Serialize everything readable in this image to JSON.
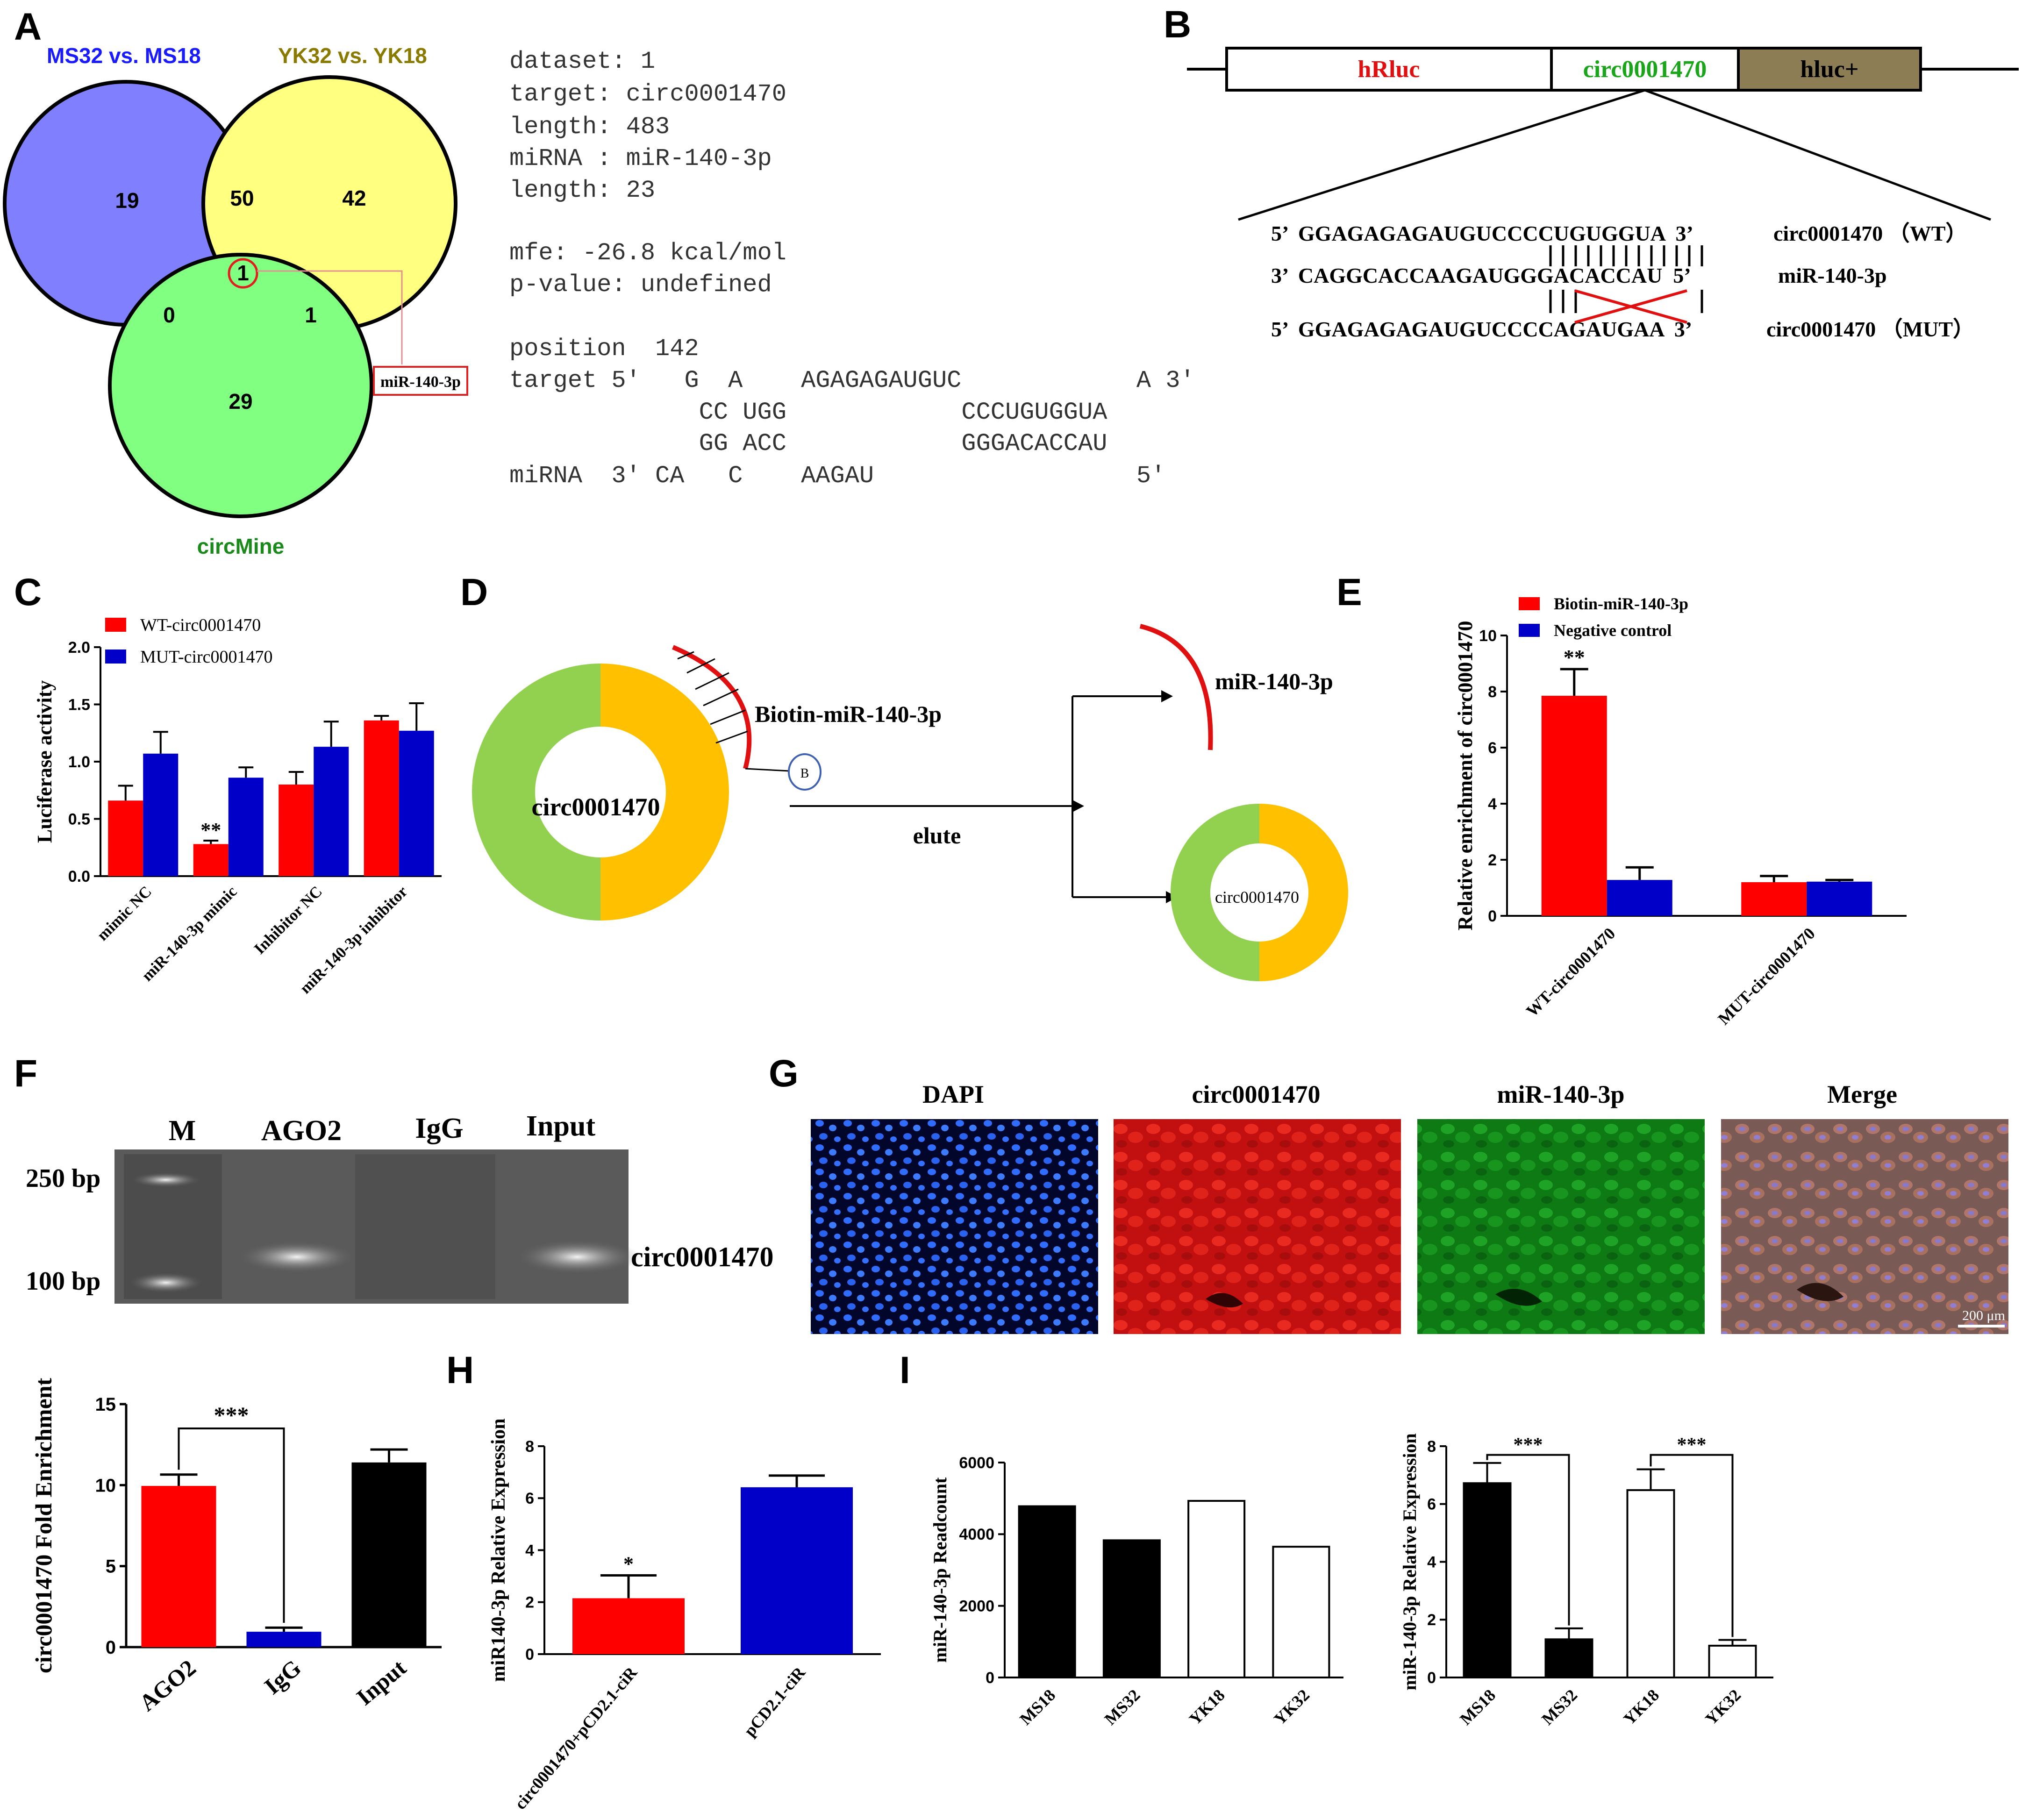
{
  "panels": {
    "A": {
      "label": "A",
      "set1": "MS32 vs. MS18",
      "set2": "YK32 vs. YK18",
      "set3": "circMine",
      "counts": {
        "only1": "19",
        "only2": "42",
        "only3": "29",
        "c12": "50",
        "c13": "0",
        "c23": "1",
        "c123": "1"
      },
      "callout": "miR-140-3p",
      "colors": {
        "set1": "#8080ff",
        "set2": "#ffff80",
        "set3": "#80ff80",
        "set1_text": "#1a1aff",
        "set2_text": "#8a7a00",
        "set3_text": "#1a8a1a"
      },
      "rna_lines": [
        "dataset: 1",
        "target: circ0001470",
        "length: 483",
        "miRNA : miR-140-3p",
        "length: 23",
        "",
        "mfe: -26.8 kcal/mol",
        "p-value: undefined",
        "",
        "position  142",
        "target 5'   G  A    AGAGAGAUGUC            A 3'",
        "             CC UGG            CCCUGUGGUA",
        "             GG ACC            GGGACACCAU",
        "miRNA  3' CA   C    AAGAU                  5'"
      ]
    },
    "B": {
      "label": "B",
      "box1": "hRluc",
      "box2": "circ0001470",
      "box3": "hluc+",
      "wt_seq": "5’  GGAGAGAGAUGUCCCCUGUGGUA  3’",
      "wt_label": "circ0001470 （WT）",
      "mir_seq": "3’  CAGGCACCAAGAUGGGACACCAU  5’",
      "mir_label": "miR-140-3p",
      "mut_seq": "5’  GGAGAGAGAUGUCCCCAGAUGAA  3’",
      "mut_label": "circ0001470 （MUT）"
    },
    "C": {
      "label": "C",
      "ylabel": "Luciferase activity",
      "sig": "**",
      "legend": [
        "WT-circ0001470",
        "MUT-circ0001470"
      ]
    },
    "D": {
      "label": "D",
      "ring_label": "circ0001470",
      "probe_label": "Biotin-miR-140-3p",
      "bead": "B",
      "elute": "elute",
      "mir_label": "miR-140-3p",
      "small_ring_label": "circ0001470"
    },
    "E": {
      "label": "E",
      "ylabel": "Relative enrichment of circ0001470",
      "sig": "**",
      "legend": [
        "Biotin-miR-140-3p",
        "Negative control"
      ]
    },
    "F": {
      "label": "F",
      "gel_lanes": [
        "M",
        "AGO2",
        "IgG",
        "Input"
      ],
      "gel_markers": [
        "250 bp",
        "100 bp"
      ],
      "gel_target": "circ0001470",
      "ylabel": "circ0001470 Fold Enrichment",
      "sig": "***"
    },
    "G": {
      "label": "G",
      "titles": [
        "DAPI",
        "circ0001470",
        "miR-140-3p",
        "Merge"
      ],
      "scale_bar": "200 μm"
    },
    "H": {
      "label": "H",
      "ylabel": "miR140-3p Relative Expression",
      "sig": "*"
    },
    "I": {
      "label": "I",
      "ylabel_left": "miR-140-3p Readcount",
      "ylabel_right": "miR-140-3p Relative Expression",
      "sig": [
        "***",
        "***"
      ]
    }
  },
  "chart_data": [
    {
      "id": "C",
      "type": "bar",
      "categories": [
        "mimic NC",
        "miR-140-3p mimic",
        "Inhibitor NC",
        "miR-140-3p inhibitor"
      ],
      "series": [
        {
          "name": "WT-circ0001470",
          "color": "#ff0000",
          "values": [
            0.66,
            0.28,
            0.8,
            1.36
          ],
          "errors": [
            0.13,
            0.03,
            0.11,
            0.04
          ]
        },
        {
          "name": "MUT-circ0001470",
          "color": "#0000c8",
          "values": [
            1.07,
            0.86,
            1.13,
            1.27
          ],
          "errors": [
            0.19,
            0.09,
            0.22,
            0.24
          ]
        }
      ],
      "ylabel": "Luciferase activity",
      "ylim": [
        0,
        2.0
      ],
      "yticks": [
        "0.0",
        "0.5",
        "1.0",
        "1.5",
        "2.0"
      ],
      "annotations": [
        {
          "text": "**",
          "category": "miR-140-3p mimic",
          "series": 0
        }
      ]
    },
    {
      "id": "E",
      "type": "bar",
      "categories": [
        "WT-circ0001470",
        "MUT-circ0001470"
      ],
      "series": [
        {
          "name": "Biotin-miR-140-3p",
          "color": "#ff0000",
          "values": [
            7.85,
            1.2
          ],
          "errors": [
            0.95,
            0.22
          ]
        },
        {
          "name": "Negative control",
          "color": "#0000c8",
          "values": [
            1.28,
            1.22
          ],
          "errors": [
            0.45,
            0.06
          ]
        }
      ],
      "ylabel": "Relative enrichment of circ0001470",
      "ylim": [
        0,
        10
      ],
      "yticks": [
        "0",
        "2",
        "4",
        "6",
        "8",
        "10"
      ],
      "annotations": [
        {
          "text": "**",
          "category": "WT-circ0001470",
          "series": 0
        }
      ]
    },
    {
      "id": "F",
      "type": "bar",
      "categories": [
        "AGO2",
        "IgG",
        "Input"
      ],
      "values": [
        9.95,
        0.95,
        11.4
      ],
      "errors": [
        0.7,
        0.25,
        0.8
      ],
      "colors": [
        "#ff0000",
        "#0000c8",
        "#000000"
      ],
      "ylabel": "circ0001470 Fold Enrichment",
      "ylim": [
        0,
        15
      ],
      "yticks": [
        "0",
        "5",
        "10",
        "15"
      ],
      "annotations": [
        {
          "text": "***",
          "from": "AGO2",
          "to": "IgG"
        }
      ]
    },
    {
      "id": "H",
      "type": "bar",
      "categories": [
        "circ0001470+pCD2.1-ciR",
        "pCD2.1-ciR"
      ],
      "values": [
        2.15,
        6.42
      ],
      "errors": [
        0.88,
        0.45
      ],
      "colors": [
        "#ff0000",
        "#0000c8"
      ],
      "ylabel": "miR140-3p Relative Expression",
      "ylim": [
        0,
        8
      ],
      "yticks": [
        "0",
        "2",
        "4",
        "6",
        "8"
      ],
      "annotations": [
        {
          "text": "*",
          "category": "circ0001470+pCD2.1-ciR"
        }
      ]
    },
    {
      "id": "I-left",
      "type": "bar",
      "categories": [
        "MS18",
        "MS32",
        "YK18",
        "YK32"
      ],
      "values": [
        4780,
        3830,
        4930,
        3650
      ],
      "fills": [
        "#000000",
        "#000000",
        "#ffffff",
        "#ffffff"
      ],
      "ylabel": "miR-140-3p Readcount",
      "ylim": [
        0,
        6000
      ],
      "yticks": [
        "0",
        "2000",
        "4000",
        "6000"
      ]
    },
    {
      "id": "I-right",
      "type": "bar",
      "categories": [
        "MS18",
        "MS32",
        "YK18",
        "YK32"
      ],
      "values": [
        6.72,
        1.32,
        6.48,
        1.1
      ],
      "errors": [
        0.7,
        0.38,
        0.72,
        0.2
      ],
      "fills": [
        "#000000",
        "#000000",
        "#ffffff",
        "#ffffff"
      ],
      "ylabel": "miR-140-3p Relative Expression",
      "ylim": [
        0,
        8
      ],
      "yticks": [
        "0",
        "2",
        "4",
        "6",
        "8"
      ],
      "annotations": [
        {
          "text": "***",
          "from": "MS18",
          "to": "MS32"
        },
        {
          "text": "***",
          "from": "YK18",
          "to": "YK32"
        }
      ]
    }
  ]
}
